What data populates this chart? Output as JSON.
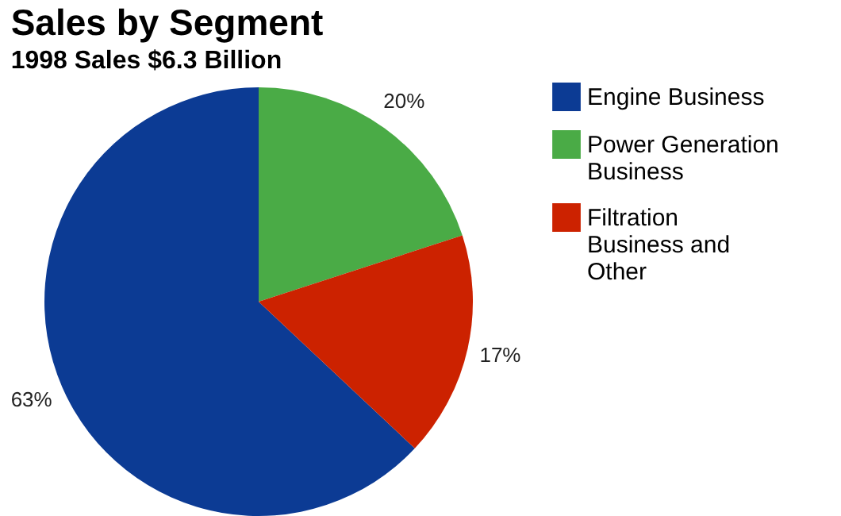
{
  "chart_data": {
    "type": "pie",
    "title": "Sales by Segment",
    "subtitle": "1998 Sales $6.3 Billion",
    "categories": [
      "Engine Business",
      "Power Generation Business",
      "Filtration Business and Other"
    ],
    "values": [
      63,
      20,
      17
    ],
    "colors": [
      "#0c3b94",
      "#4aab46",
      "#cc2200"
    ],
    "value_labels": [
      "63%",
      "20%",
      "17%"
    ],
    "legend": "right"
  }
}
